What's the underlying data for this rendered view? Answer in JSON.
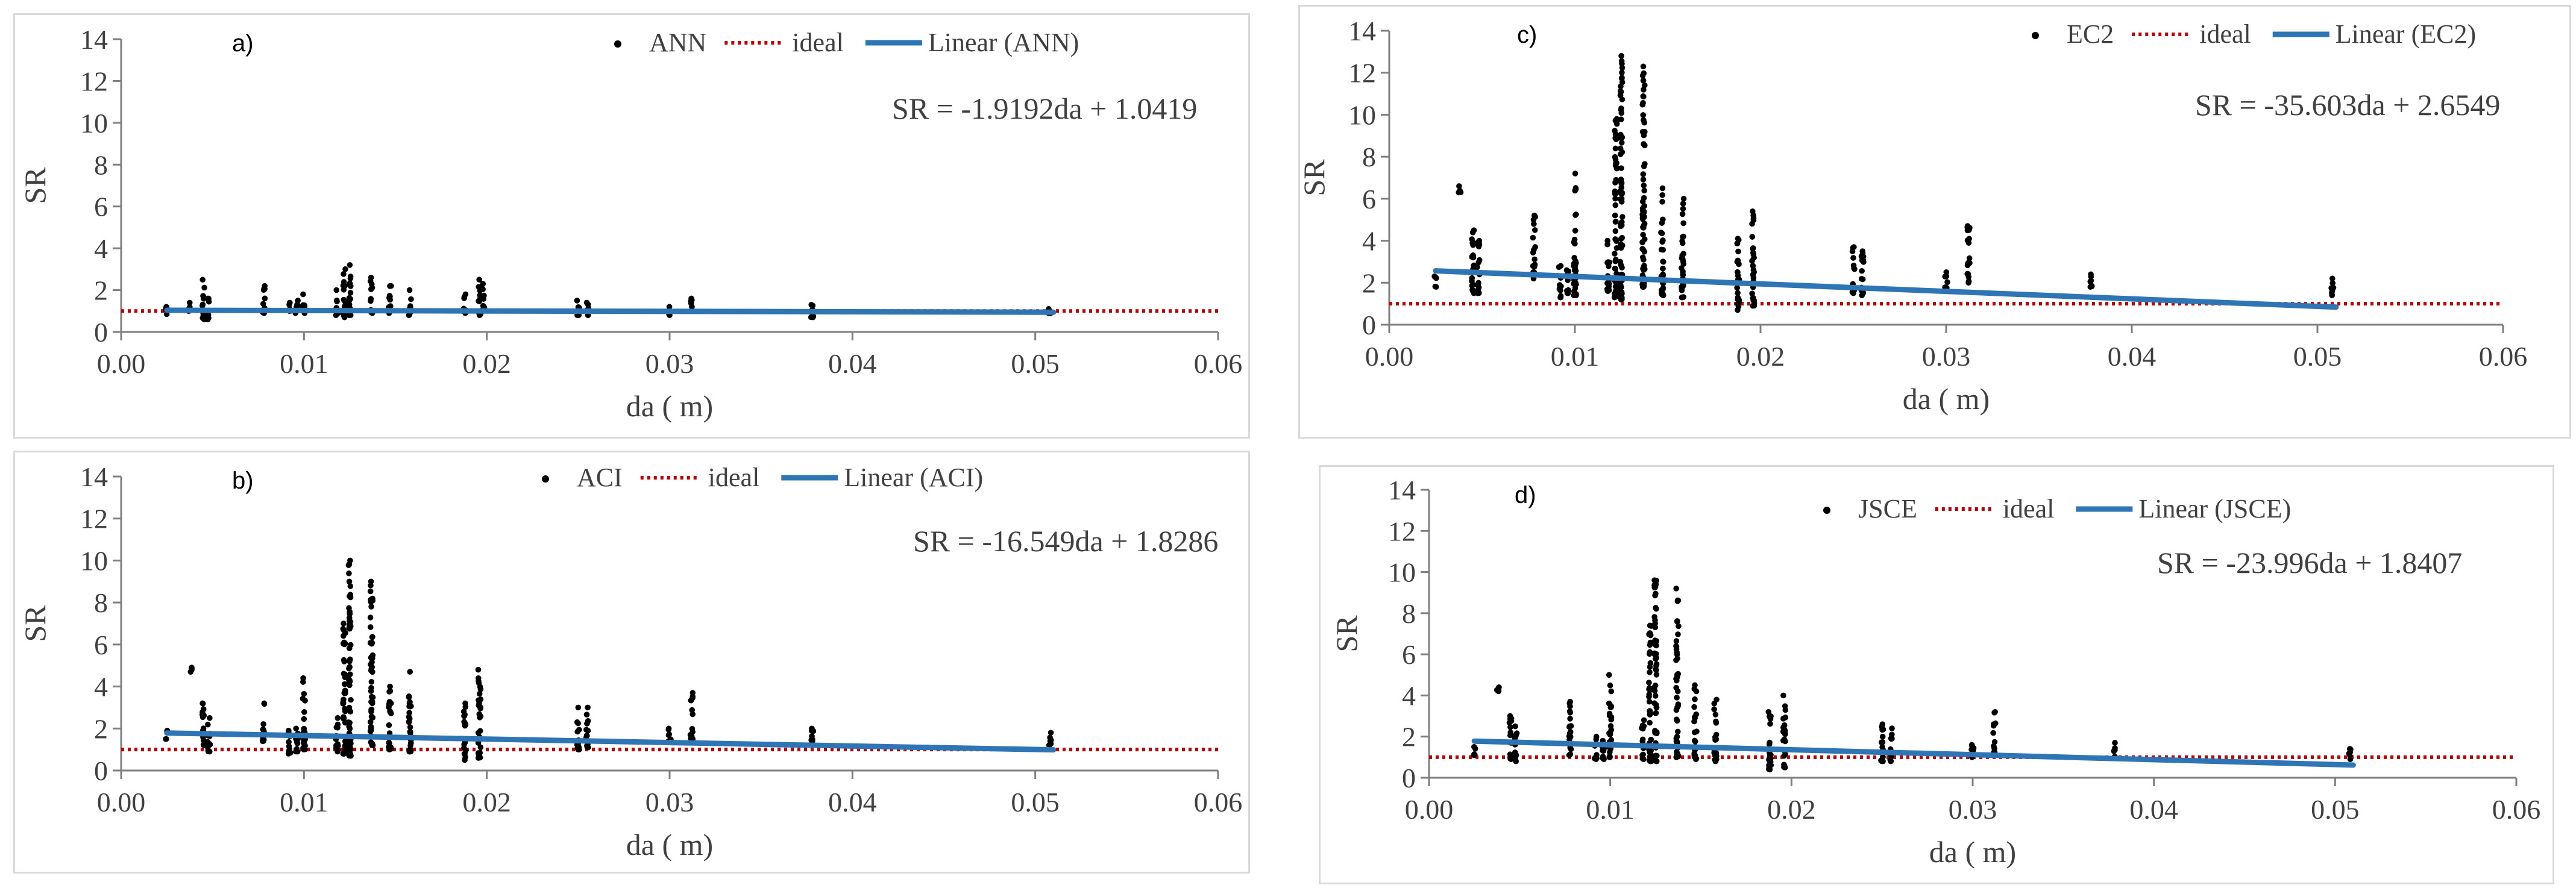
{
  "chart_data": [
    {
      "id": "a",
      "type": "scatter",
      "panel_label": "a)",
      "xlabel": "da ( m)",
      "ylabel": "SR",
      "xlim": [
        0,
        0.06
      ],
      "ylim": [
        0,
        14
      ],
      "xticks": [
        "0.00",
        "0.01",
        "0.02",
        "0.03",
        "0.04",
        "0.05",
        "0.06"
      ],
      "yticks": [
        "0",
        "2",
        "4",
        "6",
        "8",
        "10",
        "12",
        "14"
      ],
      "legend": {
        "points": "ANN",
        "ideal": "ideal",
        "trend": "Linear (ANN)"
      },
      "equation": "SR = -1.9192da + 1.0419",
      "trend": {
        "slope": -1.9192,
        "intercept": 1.0419,
        "x_range": [
          0.0025,
          0.051
        ]
      },
      "ideal_value": 1,
      "columns": [
        {
          "x": 0.0025,
          "min": 0.85,
          "max": 1.2
        },
        {
          "x": 0.0037,
          "min": 1.0,
          "max": 1.4
        },
        {
          "x": 0.0045,
          "min": 0.6,
          "max": 2.5
        },
        {
          "x": 0.0048,
          "min": 0.6,
          "max": 1.6
        },
        {
          "x": 0.0078,
          "min": 0.9,
          "max": 2.2
        },
        {
          "x": 0.0092,
          "min": 1.0,
          "max": 1.4
        },
        {
          "x": 0.0096,
          "min": 0.9,
          "max": 1.5
        },
        {
          "x": 0.01,
          "min": 0.9,
          "max": 1.8
        },
        {
          "x": 0.0118,
          "min": 0.8,
          "max": 2.0
        },
        {
          "x": 0.0122,
          "min": 0.7,
          "max": 3.0
        },
        {
          "x": 0.0125,
          "min": 0.8,
          "max": 3.2
        },
        {
          "x": 0.0137,
          "min": 0.9,
          "max": 2.6
        },
        {
          "x": 0.0147,
          "min": 0.9,
          "max": 2.2
        },
        {
          "x": 0.0158,
          "min": 0.8,
          "max": 2.0
        },
        {
          "x": 0.0188,
          "min": 0.9,
          "max": 1.8
        },
        {
          "x": 0.0196,
          "min": 0.8,
          "max": 2.5
        },
        {
          "x": 0.0198,
          "min": 1.0,
          "max": 2.3
        },
        {
          "x": 0.025,
          "min": 0.8,
          "max": 1.5
        },
        {
          "x": 0.0255,
          "min": 0.8,
          "max": 1.4
        },
        {
          "x": 0.03,
          "min": 0.8,
          "max": 1.2
        },
        {
          "x": 0.0312,
          "min": 1.2,
          "max": 1.6
        },
        {
          "x": 0.0378,
          "min": 0.7,
          "max": 1.3
        },
        {
          "x": 0.0508,
          "min": 0.9,
          "max": 1.1
        }
      ]
    },
    {
      "id": "b",
      "type": "scatter",
      "panel_label": "b)",
      "xlabel": "da ( m)",
      "ylabel": "SR",
      "xlim": [
        0,
        0.06
      ],
      "ylim": [
        0,
        14
      ],
      "xticks": [
        "0.00",
        "0.01",
        "0.02",
        "0.03",
        "0.04",
        "0.05",
        "0.06"
      ],
      "yticks": [
        "0",
        "2",
        "4",
        "6",
        "8",
        "10",
        "12",
        "14"
      ],
      "legend": {
        "points": "ACI",
        "ideal": "ideal",
        "trend": "Linear (ACI)"
      },
      "equation": "SR = -16.549da + 1.8286",
      "trend": {
        "slope": -16.549,
        "intercept": 1.8286,
        "x_range": [
          0.0025,
          0.051
        ]
      },
      "ideal_value": 1,
      "columns": [
        {
          "x": 0.0025,
          "min": 1.5,
          "max": 1.9
        },
        {
          "x": 0.0038,
          "min": 4.7,
          "max": 4.9
        },
        {
          "x": 0.0045,
          "min": 1.2,
          "max": 3.2
        },
        {
          "x": 0.0048,
          "min": 0.9,
          "max": 2.5
        },
        {
          "x": 0.0078,
          "min": 1.4,
          "max": 3.2
        },
        {
          "x": 0.0092,
          "min": 0.8,
          "max": 1.9
        },
        {
          "x": 0.0096,
          "min": 0.9,
          "max": 2.0
        },
        {
          "x": 0.01,
          "min": 1.0,
          "max": 4.4
        },
        {
          "x": 0.0118,
          "min": 0.9,
          "max": 2.5
        },
        {
          "x": 0.0122,
          "min": 0.8,
          "max": 7.0
        },
        {
          "x": 0.0125,
          "min": 0.7,
          "max": 10.0
        },
        {
          "x": 0.0137,
          "min": 1.2,
          "max": 9.0
        },
        {
          "x": 0.0147,
          "min": 1.0,
          "max": 4.0
        },
        {
          "x": 0.0158,
          "min": 0.9,
          "max": 4.7
        },
        {
          "x": 0.0188,
          "min": 0.5,
          "max": 3.2
        },
        {
          "x": 0.0196,
          "min": 0.6,
          "max": 4.8
        },
        {
          "x": 0.025,
          "min": 1.0,
          "max": 3.0
        },
        {
          "x": 0.0255,
          "min": 1.1,
          "max": 3.0
        },
        {
          "x": 0.03,
          "min": 1.4,
          "max": 2.0
        },
        {
          "x": 0.0312,
          "min": 1.5,
          "max": 3.7
        },
        {
          "x": 0.0378,
          "min": 1.4,
          "max": 2.0
        },
        {
          "x": 0.0508,
          "min": 1.2,
          "max": 1.8
        }
      ]
    },
    {
      "id": "c",
      "type": "scatter",
      "panel_label": "c)",
      "xlabel": "da ( m)",
      "ylabel": "SR",
      "xlim": [
        0,
        0.06
      ],
      "ylim": [
        0,
        14
      ],
      "xticks": [
        "0.00",
        "0.01",
        "0.02",
        "0.03",
        "0.04",
        "0.05",
        "0.06"
      ],
      "yticks": [
        "0",
        "2",
        "4",
        "6",
        "8",
        "10",
        "12",
        "14"
      ],
      "legend": {
        "points": "EC2",
        "ideal": "ideal",
        "trend": "Linear (EC2)"
      },
      "equation": "SR = -35.603da + 2.6549",
      "trend": {
        "slope": -35.603,
        "intercept": 2.6549,
        "x_range": [
          0.0025,
          0.051
        ]
      },
      "ideal_value": 1,
      "columns": [
        {
          "x": 0.0025,
          "min": 1.8,
          "max": 2.3
        },
        {
          "x": 0.0038,
          "min": 6.3,
          "max": 6.6
        },
        {
          "x": 0.0045,
          "min": 1.5,
          "max": 4.5
        },
        {
          "x": 0.0048,
          "min": 1.5,
          "max": 4.0
        },
        {
          "x": 0.0078,
          "min": 2.2,
          "max": 5.2
        },
        {
          "x": 0.0092,
          "min": 1.3,
          "max": 2.8
        },
        {
          "x": 0.0096,
          "min": 1.5,
          "max": 2.6
        },
        {
          "x": 0.01,
          "min": 1.4,
          "max": 7.2
        },
        {
          "x": 0.0118,
          "min": 1.6,
          "max": 4.0
        },
        {
          "x": 0.0122,
          "min": 1.3,
          "max": 9.8
        },
        {
          "x": 0.0125,
          "min": 1.2,
          "max": 12.8
        },
        {
          "x": 0.0137,
          "min": 1.8,
          "max": 12.3
        },
        {
          "x": 0.0147,
          "min": 1.4,
          "max": 6.5
        },
        {
          "x": 0.0158,
          "min": 1.3,
          "max": 6.0
        },
        {
          "x": 0.0188,
          "min": 0.7,
          "max": 4.1
        },
        {
          "x": 0.0196,
          "min": 0.9,
          "max": 5.4
        },
        {
          "x": 0.025,
          "min": 1.5,
          "max": 3.7
        },
        {
          "x": 0.0255,
          "min": 1.4,
          "max": 3.5
        },
        {
          "x": 0.03,
          "min": 1.7,
          "max": 2.5
        },
        {
          "x": 0.0312,
          "min": 2.0,
          "max": 4.7
        },
        {
          "x": 0.0378,
          "min": 1.8,
          "max": 2.4
        },
        {
          "x": 0.0508,
          "min": 1.4,
          "max": 2.2
        }
      ]
    },
    {
      "id": "d",
      "type": "scatter",
      "panel_label": "d)",
      "xlabel": "da ( m)",
      "ylabel": "SR",
      "xlim": [
        0,
        0.06
      ],
      "ylim": [
        0,
        14
      ],
      "xticks": [
        "0.00",
        "0.01",
        "0.02",
        "0.03",
        "0.04",
        "0.05",
        "0.06"
      ],
      "yticks": [
        "0",
        "2",
        "4",
        "6",
        "8",
        "10",
        "12",
        "14"
      ],
      "legend": {
        "points": "JSCE",
        "ideal": "ideal",
        "trend": "Linear (JSCE)"
      },
      "equation": "SR = -23.996da + 1.8407",
      "trend": {
        "slope": -23.996,
        "intercept": 1.8407,
        "x_range": [
          0.0025,
          0.051
        ]
      },
      "ideal_value": 1,
      "columns": [
        {
          "x": 0.0025,
          "min": 1.1,
          "max": 1.5
        },
        {
          "x": 0.0038,
          "min": 4.2,
          "max": 4.4
        },
        {
          "x": 0.0045,
          "min": 0.9,
          "max": 3.0
        },
        {
          "x": 0.0048,
          "min": 0.8,
          "max": 2.5
        },
        {
          "x": 0.0078,
          "min": 1.1,
          "max": 3.7
        },
        {
          "x": 0.0092,
          "min": 0.9,
          "max": 2.0
        },
        {
          "x": 0.0096,
          "min": 0.9,
          "max": 1.8
        },
        {
          "x": 0.01,
          "min": 1.0,
          "max": 5.0
        },
        {
          "x": 0.0118,
          "min": 0.9,
          "max": 2.8
        },
        {
          "x": 0.0122,
          "min": 0.8,
          "max": 7.4
        },
        {
          "x": 0.0125,
          "min": 0.8,
          "max": 9.6
        },
        {
          "x": 0.0137,
          "min": 1.0,
          "max": 9.2
        },
        {
          "x": 0.0147,
          "min": 0.9,
          "max": 4.5
        },
        {
          "x": 0.0158,
          "min": 0.8,
          "max": 3.8
        },
        {
          "x": 0.0188,
          "min": 0.4,
          "max": 3.2
        },
        {
          "x": 0.0196,
          "min": 0.5,
          "max": 4.0
        },
        {
          "x": 0.025,
          "min": 0.8,
          "max": 2.6
        },
        {
          "x": 0.0255,
          "min": 0.8,
          "max": 2.4
        },
        {
          "x": 0.03,
          "min": 1.0,
          "max": 1.6
        },
        {
          "x": 0.0312,
          "min": 1.1,
          "max": 3.2
        },
        {
          "x": 0.0378,
          "min": 1.0,
          "max": 1.7
        },
        {
          "x": 0.0508,
          "min": 0.9,
          "max": 1.4
        }
      ]
    }
  ],
  "colors": {
    "points": "#000000",
    "ideal": "#c00000",
    "trend": "#2e75b6",
    "axis": "#7f7f7f",
    "text": "#404040"
  }
}
